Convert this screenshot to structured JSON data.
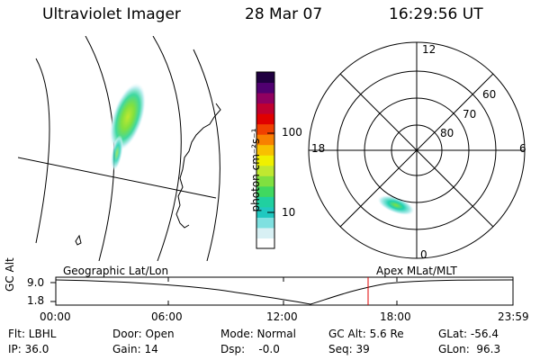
{
  "header": {
    "title": "Ultraviolet Imager",
    "date": "28 Mar 07",
    "time": "16:29:56 UT"
  },
  "colorbar": {
    "unit_label": "photon cm⁻²s⁻¹",
    "tick_100": "100",
    "tick_10": "10",
    "colors": [
      "#ffffff",
      "#d8f0f4",
      "#7fe0e0",
      "#20c8c0",
      "#20d0a0",
      "#40d860",
      "#80e040",
      "#c0e830",
      "#f0f000",
      "#f8c000",
      "#f88000",
      "#f04000",
      "#e00000",
      "#c00030",
      "#900060",
      "#500070",
      "#200040"
    ]
  },
  "polar_plot": {
    "mlt_labels": {
      "top": "12",
      "right": "6",
      "bottom": "0",
      "left": "18"
    },
    "lat_labels": {
      "ring60": "60",
      "ring70": "70",
      "ring80": "80"
    }
  },
  "panel_labels": {
    "geographic": "Geographic Lat/Lon",
    "apex": "Apex MLat/MLT"
  },
  "altitude_panel": {
    "ylabel": "GC Alt",
    "ytick_top": "9.0",
    "ytick_bottom": "1.8",
    "x_ticks": [
      "00:00",
      "06:00",
      "12:00",
      "18:00",
      "23:59"
    ],
    "marker_color": "#e00000"
  },
  "info": {
    "filter": "Flt: LBHL",
    "ip": "IP: 36.0",
    "door": "Door: Open",
    "gain": "Gain: 14",
    "mode": "Mode: Normal",
    "dsp": "Dsp:    -0.0",
    "gc_alt": "GC Alt: 5.6 Re",
    "seq": "Seq: 39",
    "glat": "GLat: -56.4",
    "glon": "GLon:  96.3"
  }
}
